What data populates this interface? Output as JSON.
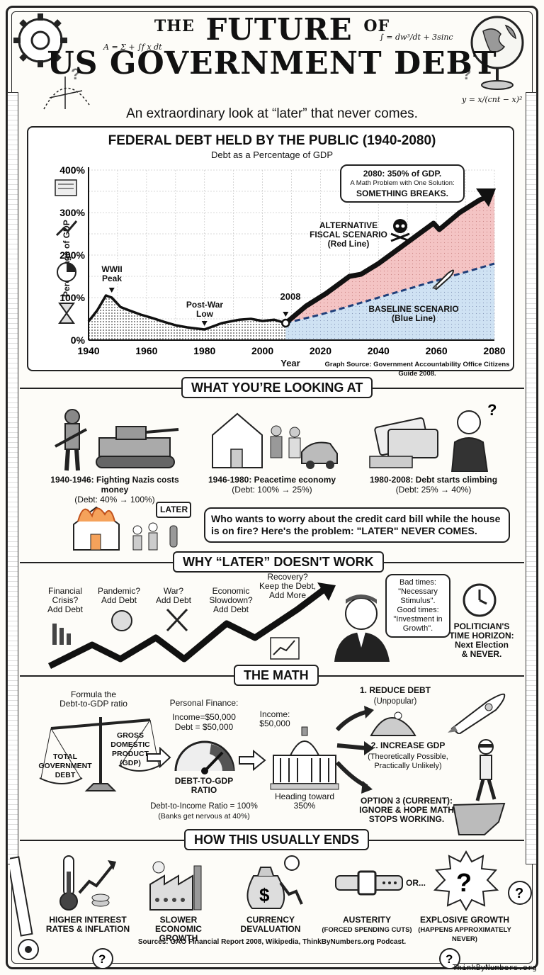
{
  "header": {
    "title_the": "THE",
    "title_future": "FUTURE",
    "title_of": "OF",
    "title_line2": "US GOVERNMENT DEBT",
    "subtitle": "An extraordinary look at “later” that never comes.",
    "formula_left": "A = Σ + ∫f x dt",
    "formula_right": "∫ = dw³/dt + 3sinc",
    "formula_right2": "y = x/(cnt − x)²"
  },
  "chart": {
    "title": "FEDERAL DEBT HELD BY THE PUBLIC (1940-2080)",
    "subtitle": "Debt as a Percentage of GDP",
    "ylabel": "Percentage of GDP",
    "xlabel": "Year",
    "source": "Graph Source: Government Accountability Office Citizens Guide 2008.",
    "ann_wwii": "WWII\nPeak",
    "ann_postwar": "Post-War\nLow",
    "ann_2008": "2008",
    "ann_alt": "ALTERNATIVE\nFISCAL SCENARIO\n(Red Line)",
    "ann_base": "BASELINE SCENARIO\n(Blue Line)",
    "callout_l1": "2080: 350% of GDP.",
    "callout_l2": "A Math Problem with One Solution:",
    "callout_l3": "SOMETHING BREAKS."
  },
  "chart_data": {
    "type": "line",
    "title": "FEDERAL DEBT HELD BY THE PUBLIC (1940-2080)",
    "subtitle": "Debt as a Percentage of GDP",
    "xlabel": "Year",
    "ylabel": "Percentage of GDP",
    "xlim": [
      1940,
      2080
    ],
    "ylim": [
      0,
      400
    ],
    "x_ticks": [
      1940,
      1960,
      1980,
      2000,
      2020,
      2040,
      2060,
      2080
    ],
    "y_ticks": [
      "0%",
      "100%",
      "200%",
      "300%",
      "400%"
    ],
    "grid": true,
    "series": [
      {
        "name": "",
        "x": [
          1940,
          1943,
          1946,
          1948,
          1951,
          1954,
          1958,
          1962,
          1966,
          1970,
          1974,
          1980,
          1986,
          1992,
          1996,
          2000,
          2004,
          2008
        ],
        "y": [
          44,
          70,
          105,
          100,
          78,
          70,
          60,
          52,
          43,
          35,
          30,
          25,
          40,
          48,
          50,
          45,
          48,
          40
        ]
      },
      {
        "name": "ALTERNATIVE FISCAL SCENARIO (Red Line)",
        "x": [
          2008,
          2015,
          2022,
          2030,
          2034,
          2040,
          2048,
          2054,
          2059,
          2061,
          2068,
          2075,
          2080
        ],
        "y": [
          40,
          80,
          110,
          150,
          155,
          180,
          220,
          250,
          275,
          260,
          300,
          330,
          350
        ]
      },
      {
        "name": "BASELINE SCENARIO (Blue Line)",
        "x": [
          2008,
          2020,
          2030,
          2040,
          2050,
          2060,
          2070,
          2080
        ],
        "y": [
          40,
          60,
          80,
          100,
          120,
          140,
          160,
          180
        ]
      }
    ],
    "annotations": [
      "WWII Peak",
      "Post-War Low",
      "2008",
      "2080: 350% of GDP."
    ]
  },
  "section1": {
    "heading": "WHAT YOU’RE LOOKING AT",
    "items": [
      {
        "title": "1940-1946: Fighting Nazis costs money",
        "sub": "(Debt: 40% → 100%)"
      },
      {
        "title": "1946-1980: Peacetime economy",
        "sub": "(Debt: 100% → 25%)"
      },
      {
        "title": "1980-2008: Debt starts climbing",
        "sub": "(Debt: 25% → 40%)"
      }
    ],
    "later_tag": "LATER",
    "bubble": "Who wants to worry about the credit card bill while the house is on fire? Here's the problem: \"LATER\" NEVER COMES."
  },
  "section2": {
    "heading": "WHY “LATER” DOESN'T WORK",
    "steps": [
      "Financial\nCrisis?\nAdd Debt",
      "Pandemic?\nAdd Debt",
      "War?\nAdd Debt",
      "Economic\nSlowdown?\nAdd Debt",
      "Recovery?\nKeep the Debt,\nAdd More"
    ],
    "speech": "Bad times:\n\"Necessary\nStimulus\".\nGood times:\n\"Investment in\nGrowth\".",
    "horizon": "POLITICIAN'S\nTIME HORIZON:\nNext Election\n& NEVER."
  },
  "section3": {
    "heading": "THE MATH",
    "formula_label": "Formula the\nDebt-to-GDP ratio",
    "scale_left": "TOTAL\nGOVERNMENT\nDEBT",
    "scale_right": "GROSS\nDOMESTIC\nPRODUCT\n(GDP)",
    "pf_title": "Personal Finance:",
    "pf_income": "Income=$50,000",
    "pf_debt": "Debt = $50,000",
    "gauge_label": "DEBT-TO-GDP\nRATIO",
    "dti": "Debt-to-Income Ratio = 100%",
    "dti_note": "(Banks get nervous at 40%)",
    "cap_income": "Income:\n$50,000",
    "cap_heading": "Heading toward\n350%",
    "opt1_title": "1. REDUCE DEBT",
    "opt1_sub": "(Unpopular)",
    "opt2_title": "2. INCREASE GDP",
    "opt2_sub": "(Theoretically Possible,\nPractically Unlikely)",
    "opt3_title": "OPTION 3 (CURRENT):\nIGNORE & HOPE MATH\nSTOPS WORKING."
  },
  "section4": {
    "heading": "HOW THIS USUALLY ENDS",
    "or_label": "OR...",
    "items": [
      {
        "title": "HIGHER INTEREST\nRATES & INFLATION",
        "sub": ""
      },
      {
        "title": "SLOWER ECONOMIC\nGROWTH",
        "sub": ""
      },
      {
        "title": "CURRENCY\nDEVALUATION",
        "sub": ""
      },
      {
        "title": "AUSTERITY",
        "sub": "(FORCED SPENDING CUTS)"
      },
      {
        "title": "EXPLOSIVE GROWTH",
        "sub": "(HAPPENS APPROXIMATELY\nNEVER)"
      }
    ]
  },
  "footer": {
    "sources": "Sources: GAO Financial Report 2008, Wikipedia, ThinkByNumbers.org Podcast.",
    "credit": "ThinkByNumbers.org"
  },
  "colors": {
    "ink": "#111111",
    "red_fill": "#f2b6b6",
    "blue_fill": "#bcd6ee",
    "blue_line": "#1f3f7a",
    "paper": "#fdfcf8"
  }
}
